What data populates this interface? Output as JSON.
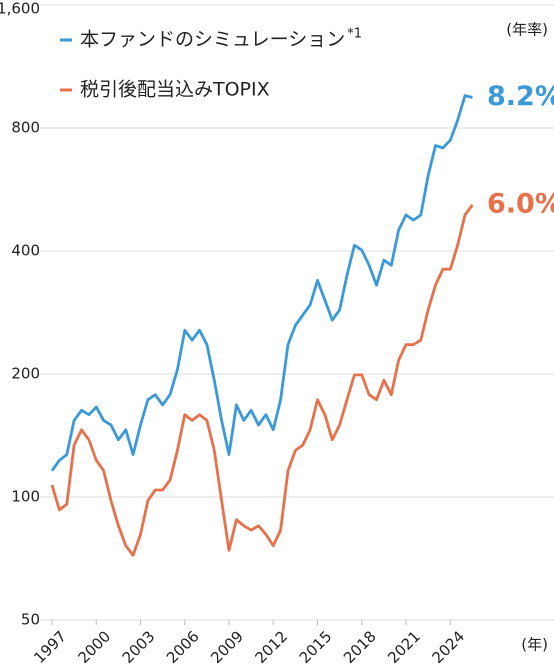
{
  "chart_data": {
    "type": "line",
    "log_scale": true,
    "grid": true,
    "y_unit": "(年率)",
    "x_unit": "(年)",
    "xlim": [
      1997,
      2027
    ],
    "xticks": [
      1997,
      2000,
      2003,
      2006,
      2009,
      2012,
      2015,
      2018,
      2021,
      2024
    ],
    "ylim": [
      50,
      1600
    ],
    "yticks": [
      50,
      100,
      200,
      400,
      800,
      {
        "value": 1600,
        "label": "1,600"
      }
    ],
    "x": [
      1997,
      1997.5,
      1998,
      1998.5,
      1999,
      1999.5,
      2000,
      2000.5,
      2001,
      2001.5,
      2002,
      2002.5,
      2003,
      2003.5,
      2004,
      2004.5,
      2005,
      2005.5,
      2006,
      2006.5,
      2007,
      2007.5,
      2008,
      2008.5,
      2009,
      2009.5,
      2010,
      2010.5,
      2011,
      2011.5,
      2012,
      2012.5,
      2013,
      2013.5,
      2014,
      2014.5,
      2015,
      2015.5,
      2016,
      2016.5,
      2017,
      2017.5,
      2018,
      2018.5,
      2019,
      2019.5,
      2020,
      2020.5,
      2021,
      2021.5,
      2022,
      2022.5,
      2023,
      2023.5,
      2024,
      2024.5,
      2025,
      2025.5
    ],
    "series": [
      {
        "name": "本ファンドのシミュレーション",
        "note": "*1",
        "end_label": "8.2%",
        "color": "#3a9ad9",
        "values": [
          116,
          123,
          127,
          154,
          163,
          159,
          166,
          154,
          150,
          138,
          146,
          127,
          150,
          173,
          178,
          168,
          178,
          205,
          256,
          242,
          256,
          236,
          193,
          154,
          127,
          168,
          154,
          163,
          150,
          159,
          146,
          173,
          236,
          263,
          279,
          295,
          339,
          303,
          271,
          287,
          349,
          413,
          402,
          369,
          330,
          380,
          369,
          450,
          490,
          476,
          490,
          611,
          725,
          715,
          747,
          835,
          960,
          950
        ]
      },
      {
        "name": "税引後配当込みTOPIX",
        "end_label": "6.0%",
        "color": "#e8704a",
        "values": [
          107,
          93,
          96,
          134,
          146,
          138,
          123,
          116,
          98,
          85,
          76,
          72,
          81,
          98,
          104,
          104,
          110,
          130,
          159,
          154,
          159,
          154,
          130,
          98,
          74,
          88,
          85,
          83,
          85,
          81,
          76,
          83,
          116,
          130,
          134,
          146,
          173,
          159,
          138,
          150,
          173,
          199,
          199,
          178,
          173,
          193,
          178,
          216,
          236,
          236,
          242,
          287,
          330,
          361,
          361,
          413,
          490,
          519
        ]
      }
    ]
  }
}
